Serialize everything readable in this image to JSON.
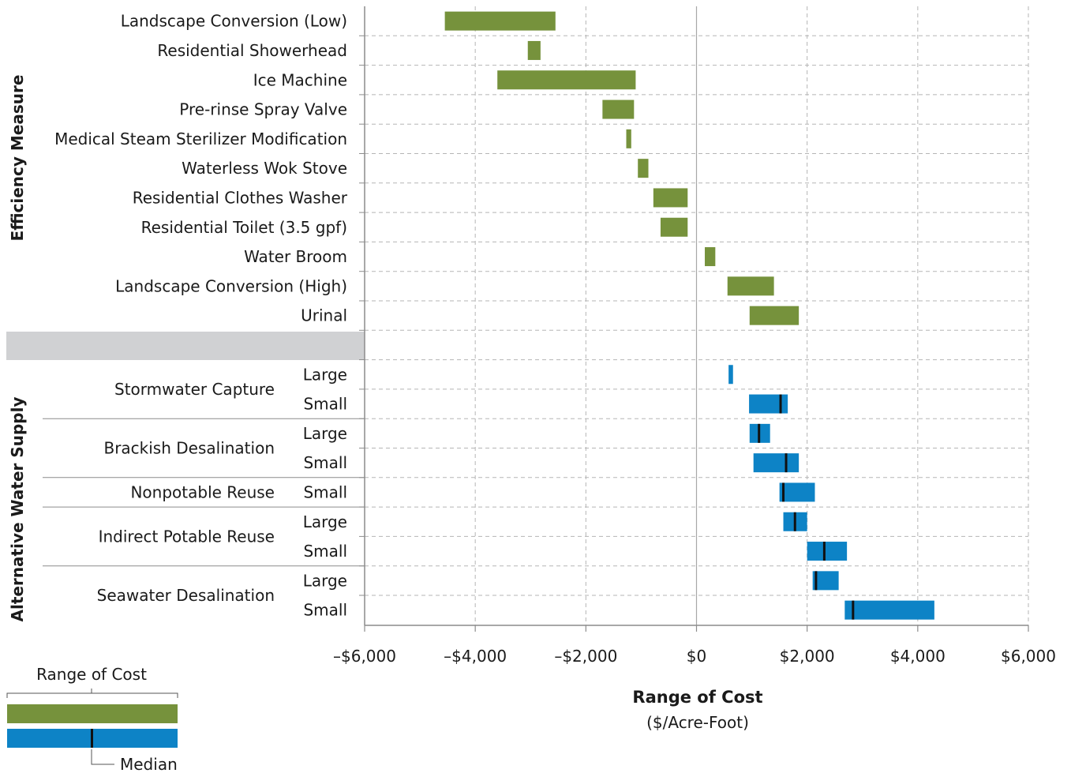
{
  "chart_data": {
    "type": "bar",
    "subtype": "floating-range",
    "xlabel": "Range of Cost",
    "xlabel_unit": "($/Acre-Foot)",
    "xlim": [
      -6000,
      6000
    ],
    "x_ticks": [
      -6000,
      -4000,
      -2000,
      0,
      2000,
      4000,
      6000
    ],
    "x_tick_labels": [
      "–$6,000",
      "–$4,000",
      "–$2,000",
      "$0",
      "$2,000",
      "$4,000",
      "$6,000"
    ],
    "grid": true,
    "colors": {
      "efficiency": "#76923c",
      "supply": "#0d83c6",
      "median": "#111111",
      "separator": "#d0d1d3"
    },
    "groups": [
      {
        "name": "Efficiency Measure",
        "rows": [
          {
            "label": "Landscape Conversion (Low)",
            "min": -4550,
            "max": -2550
          },
          {
            "label": "Residential Showerhead",
            "min": -3050,
            "max": -2820
          },
          {
            "label": "Ice Machine",
            "min": -3600,
            "max": -1100
          },
          {
            "label": "Pre-rinse Spray Valve",
            "min": -1700,
            "max": -1130
          },
          {
            "label": "Medical Steam Sterilizer Modification",
            "min": -1270,
            "max": -1180
          },
          {
            "label": "Waterless Wok Stove",
            "min": -1060,
            "max": -870
          },
          {
            "label": "Residential Clothes Washer",
            "min": -780,
            "max": -160
          },
          {
            "label": "Residential Toilet (3.5 gpf)",
            "min": -650,
            "max": -160
          },
          {
            "label": "Water Broom",
            "min": 150,
            "max": 340
          },
          {
            "label": "Landscape Conversion (High)",
            "min": 560,
            "max": 1400
          },
          {
            "label": "Urinal",
            "min": 960,
            "max": 1850
          }
        ]
      },
      {
        "name": "Alternative Water Supply",
        "rows": [
          {
            "category": "Stormwater Capture",
            "size": "Large",
            "min": 580,
            "max": 660
          },
          {
            "category": "Stormwater Capture",
            "size": "Small",
            "min": 950,
            "max": 1650,
            "median": 1520
          },
          {
            "category": "Brackish Desalination",
            "size": "Large",
            "min": 960,
            "max": 1330,
            "median": 1130
          },
          {
            "category": "Brackish Desalination",
            "size": "Small",
            "min": 1030,
            "max": 1850,
            "median": 1620
          },
          {
            "category": "Nonpotable Reuse",
            "size": "Small",
            "min": 1500,
            "max": 2140,
            "median": 1570
          },
          {
            "category": "Indirect Potable Reuse",
            "size": "Large",
            "min": 1570,
            "max": 2000,
            "median": 1780
          },
          {
            "category": "Indirect Potable Reuse",
            "size": "Small",
            "min": 2000,
            "max": 2720,
            "median": 2310
          },
          {
            "category": "Seawater Desalination",
            "size": "Large",
            "min": 2100,
            "max": 2570,
            "median": 2160
          },
          {
            "category": "Seawater Desalination",
            "size": "Small",
            "min": 2680,
            "max": 4300,
            "median": 2830
          }
        ]
      }
    ],
    "legend": {
      "position": "bottom-left",
      "range_label": "Range of Cost",
      "median_label": "Median"
    }
  }
}
